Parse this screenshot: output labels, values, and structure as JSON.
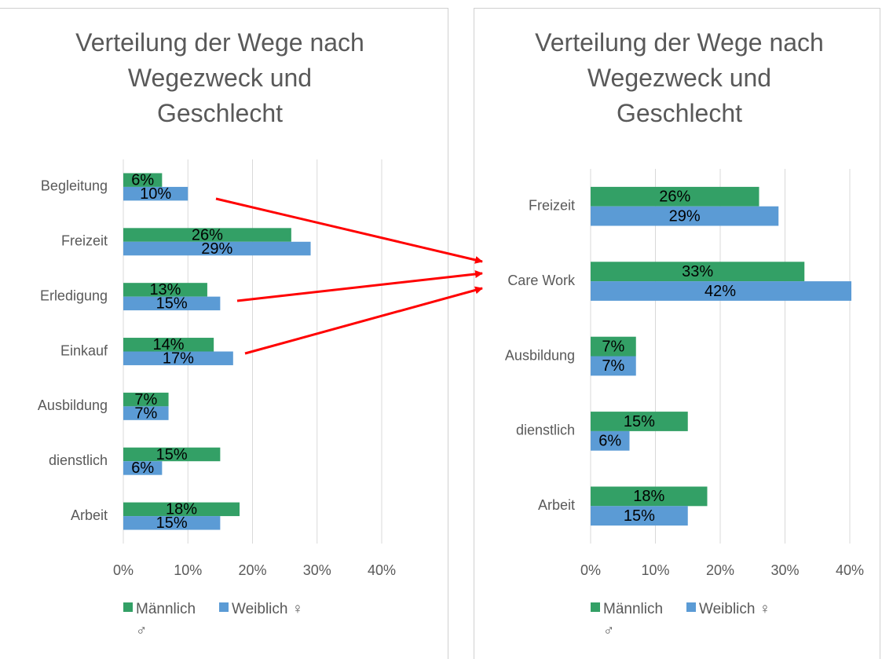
{
  "chart_data": [
    {
      "type": "bar",
      "orientation": "horizontal",
      "title": "Verteilung der Wege nach\nWegezweck und\nGeschlecht",
      "categories": [
        "Begleitung",
        "Freizeit",
        "Erledigung",
        "Einkauf",
        "Ausbildung",
        "dienstlich",
        "Arbeit"
      ],
      "series": [
        {
          "name": "Männlich ♂",
          "color": "#33a066",
          "values": [
            6,
            26,
            13,
            14,
            7,
            15,
            18
          ],
          "value_labels": [
            "6%",
            "26%",
            "13%",
            "14%",
            "7%",
            "15%",
            "18%"
          ]
        },
        {
          "name": "Weiblich ♀",
          "color": "#5b9bd5",
          "values": [
            10,
            29,
            15,
            17,
            7,
            6,
            15
          ],
          "value_labels": [
            "10%",
            "29%",
            "15%",
            "17%",
            "7%",
            "6%",
            "15%"
          ]
        }
      ],
      "xlim": [
        0,
        40
      ],
      "xticks": [
        {
          "value": 0,
          "label": "0%"
        },
        {
          "value": 10,
          "label": "10%"
        },
        {
          "value": 20,
          "label": "20%"
        },
        {
          "value": 30,
          "label": "30%"
        },
        {
          "value": 40,
          "label": "40%"
        }
      ],
      "grid": true,
      "legend": "bottom"
    },
    {
      "type": "bar",
      "orientation": "horizontal",
      "title": "Verteilung der Wege nach\nWegezweck und\nGeschlecht",
      "categories": [
        "Freizeit",
        "Care Work",
        "Ausbildung",
        "dienstlich",
        "Arbeit"
      ],
      "series": [
        {
          "name": "Männlich ♂",
          "color": "#33a066",
          "values": [
            26,
            33,
            7,
            15,
            18
          ],
          "value_labels": [
            "26%",
            "33%",
            "7%",
            "15%",
            "18%"
          ]
        },
        {
          "name": "Weiblich ♀",
          "color": "#5b9bd5",
          "values": [
            29,
            42,
            7,
            6,
            15
          ],
          "value_labels": [
            "29%",
            "42%",
            "7%",
            "6%",
            "15%"
          ]
        }
      ],
      "xlim": [
        0,
        40
      ],
      "xticks": [
        {
          "value": 0,
          "label": "0%"
        },
        {
          "value": 10,
          "label": "10%"
        },
        {
          "value": 20,
          "label": "20%"
        },
        {
          "value": 30,
          "label": "30%"
        },
        {
          "value": 40,
          "label": "40%"
        }
      ],
      "grid": true,
      "legend": "bottom"
    }
  ]
}
